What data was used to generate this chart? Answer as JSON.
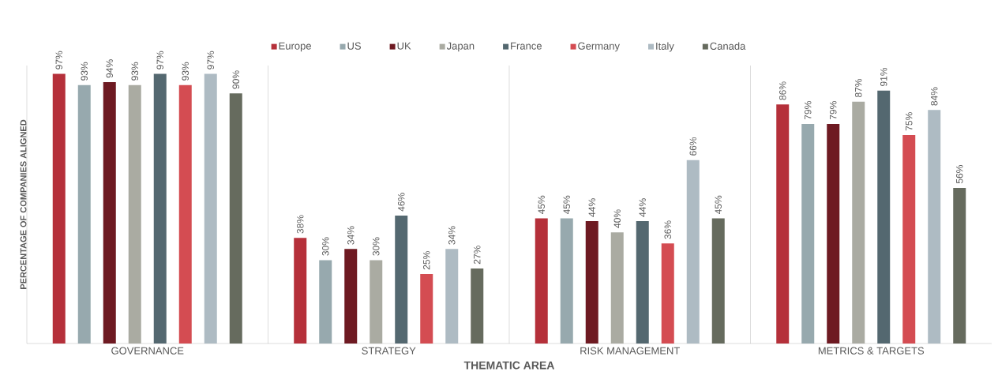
{
  "chart_data": {
    "type": "bar",
    "xlabel": "THEMATIC AREA",
    "ylabel": "PERCENTAGE OF COMPANIES ALIGNED",
    "categories": [
      "GOVERNANCE",
      "STRATEGY",
      "RISK MANAGEMENT",
      "METRICS & TARGETS"
    ],
    "ylim": [
      0,
      100
    ],
    "tick_labels": "x",
    "grid": "x",
    "legend": "top",
    "series": [
      {
        "name": "Europe",
        "color": "#b5303a",
        "values": [
          97,
          38,
          45,
          86
        ],
        "value_labels": [
          "97%",
          "38%",
          "45%",
          "86%"
        ]
      },
      {
        "name": "US",
        "color": "#97a9ae",
        "values": [
          93,
          30,
          45,
          79
        ],
        "value_labels": [
          "93%",
          "30%",
          "45%",
          "79%"
        ]
      },
      {
        "name": "UK",
        "color": "#6e1a22",
        "values": [
          94,
          34,
          44,
          79
        ],
        "value_labels": [
          "94%",
          "34%",
          "44%",
          "79%"
        ]
      },
      {
        "name": "Japan",
        "color": "#aaaba2",
        "values": [
          93,
          30,
          40,
          87
        ],
        "value_labels": [
          "93%",
          "30%",
          "40%",
          "87%"
        ]
      },
      {
        "name": "France",
        "color": "#546870",
        "values": [
          97,
          46,
          44,
          91
        ],
        "value_labels": [
          "97%",
          "46%",
          "44%",
          "91%"
        ]
      },
      {
        "name": "Germany",
        "color": "#d44c52",
        "values": [
          93,
          25,
          36,
          75
        ],
        "value_labels": [
          "93%",
          "25%",
          "36%",
          "75%"
        ]
      },
      {
        "name": "Italy",
        "color": "#aebbc3",
        "values": [
          97,
          34,
          66,
          84
        ],
        "value_labels": [
          "97%",
          "34%",
          "66%",
          "84%"
        ]
      },
      {
        "name": "Canada",
        "color": "#666b5e",
        "values": [
          90,
          27,
          45,
          56
        ],
        "value_labels": [
          "90%",
          "27%",
          "45%",
          "56%"
        ]
      }
    ]
  }
}
